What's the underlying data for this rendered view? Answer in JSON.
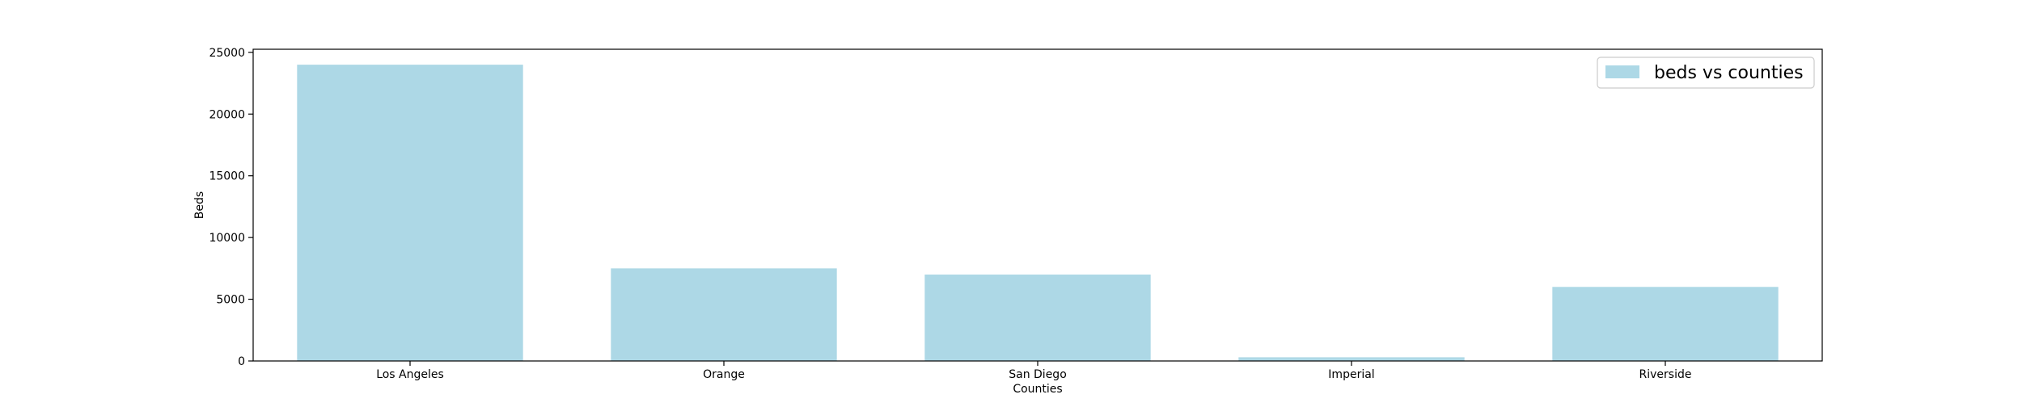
{
  "chart_data": {
    "type": "bar",
    "categories": [
      "Los Angeles",
      "Orange",
      "San Diego",
      "Imperial",
      "Riverside"
    ],
    "series": [
      {
        "name": "beds vs counties",
        "values": [
          24000,
          7500,
          7000,
          300,
          6000
        ]
      }
    ],
    "xlabel": "Counties",
    "ylabel": "Beds",
    "ylim": [
      0,
      25250
    ],
    "yticks": [
      0,
      5000,
      10000,
      15000,
      20000,
      25000
    ],
    "grid": false,
    "legend_position": "upper right",
    "colors": {
      "bar": "#add8e6",
      "axis": "#000000",
      "legend_border": "#cccccc"
    }
  }
}
